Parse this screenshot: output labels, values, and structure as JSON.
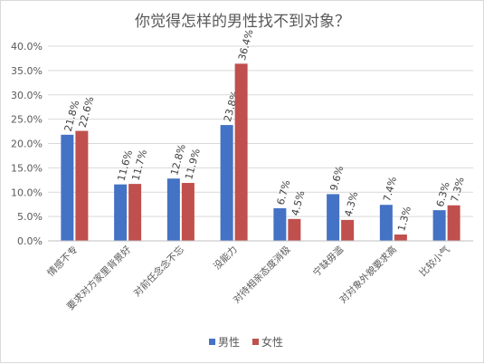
{
  "chart_data": {
    "type": "bar",
    "title": "你觉得怎样的男性找不到对象？",
    "categories": [
      "情感不专",
      "要求对方家里背景好",
      "对前任念念不忘",
      "没能力",
      "对待相亲态度消极",
      "宁缺毋滥",
      "对对象外貌要求高",
      "比较小气"
    ],
    "series": [
      {
        "name": "男性",
        "color": "#4472c4",
        "values": [
          21.8,
          11.6,
          12.8,
          23.8,
          6.7,
          9.6,
          7.4,
          6.3
        ],
        "labels": [
          "21.8%",
          "11.6%",
          "12.8%",
          "23.8%",
          "6.7%",
          "9.6%",
          "7.4%",
          "6.3%"
        ]
      },
      {
        "name": "女性",
        "color": "#c0504d",
        "values": [
          22.6,
          11.7,
          11.9,
          36.4,
          4.5,
          4.3,
          1.3,
          7.3
        ],
        "labels": [
          "22.6%",
          "11.7%",
          "11.9%",
          "36.4%",
          "4.5%",
          "4.3%",
          "1.3%",
          "7.3%"
        ]
      }
    ],
    "ylim": [
      0,
      40
    ],
    "yticks": [
      "0.0%",
      "5.0%",
      "10.0%",
      "15.0%",
      "20.0%",
      "25.0%",
      "30.0%",
      "35.0%",
      "40.0%"
    ],
    "grid": true,
    "legend": "bottom"
  }
}
